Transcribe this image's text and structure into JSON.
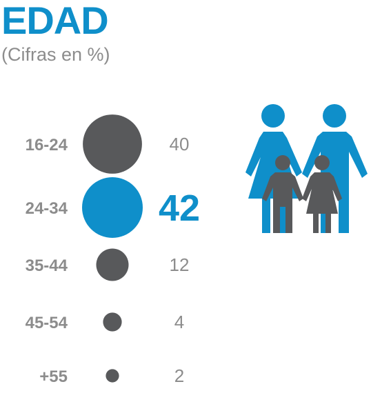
{
  "header": {
    "title": "EDAD",
    "subtitle": "(Cifras en %)"
  },
  "colors": {
    "accent": "#0f8fca",
    "dot": "#58595b",
    "label": "#8c8c8c"
  },
  "icon": "family-icon",
  "chart_data": {
    "type": "bubble",
    "title": "EDAD",
    "subtitle": "(Cifras en %)",
    "unit": "%",
    "categories": [
      "16-24",
      "24-34",
      "35-44",
      "45-54",
      "+55"
    ],
    "values": [
      40,
      42,
      12,
      4,
      2
    ],
    "highlight": "24-34"
  }
}
